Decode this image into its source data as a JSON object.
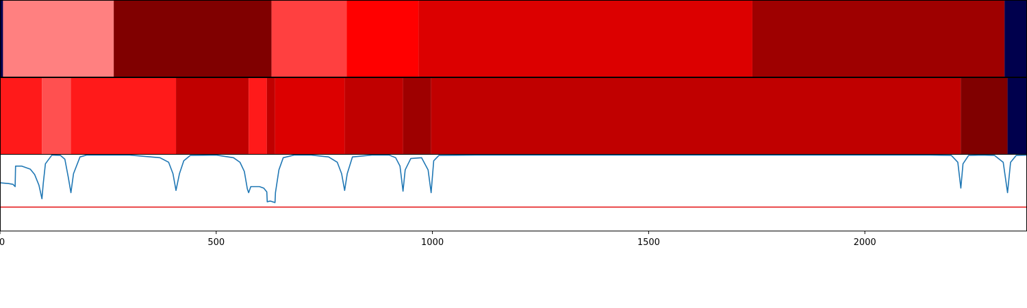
{
  "chart_data": [
    {
      "type": "heatmap",
      "title": "",
      "xlim": [
        0,
        2375
      ],
      "colormap": "seismic",
      "segments": [
        {
          "start": 0,
          "end": 7,
          "color": "#00004d"
        },
        {
          "start": 7,
          "end": 263,
          "color": "#ff8080"
        },
        {
          "start": 263,
          "end": 628,
          "color": "#800000"
        },
        {
          "start": 628,
          "end": 802,
          "color": "#ff4040"
        },
        {
          "start": 802,
          "end": 968,
          "color": "#ff0000"
        },
        {
          "start": 968,
          "end": 1740,
          "color": "#dc0000"
        },
        {
          "start": 1740,
          "end": 2323,
          "color": "#9e0000"
        },
        {
          "start": 2323,
          "end": 2375,
          "color": "#00004d"
        }
      ]
    },
    {
      "type": "heatmap",
      "title": "",
      "xlim": [
        0,
        2375
      ],
      "colormap": "seismic",
      "segments": [
        {
          "start": 0,
          "end": 97,
          "color": "#ff1a1a"
        },
        {
          "start": 97,
          "end": 164,
          "color": "#ff5050"
        },
        {
          "start": 164,
          "end": 407,
          "color": "#ff1a1a"
        },
        {
          "start": 407,
          "end": 575,
          "color": "#c00000"
        },
        {
          "start": 575,
          "end": 617,
          "color": "#ff1a1a"
        },
        {
          "start": 617,
          "end": 636,
          "color": "#c00000"
        },
        {
          "start": 636,
          "end": 797,
          "color": "#dc0000"
        },
        {
          "start": 797,
          "end": 932,
          "color": "#c00000"
        },
        {
          "start": 932,
          "end": 997,
          "color": "#9e0000"
        },
        {
          "start": 997,
          "end": 2222,
          "color": "#c00000"
        },
        {
          "start": 2222,
          "end": 2330,
          "color": "#800000"
        },
        {
          "start": 2330,
          "end": 2375,
          "color": "#00004d"
        }
      ]
    },
    {
      "type": "line",
      "title": "",
      "xlabel": "",
      "ylabel": "",
      "xlim": [
        0,
        2375
      ],
      "ylim": [
        0,
        1
      ],
      "threshold": 0.31,
      "threshold_color": "#e41a1c",
      "line_color": "#1f77b4",
      "x_ticks": [
        0,
        500,
        1000,
        1500,
        2000
      ],
      "x_tick_labels": [
        "0",
        "500",
        "1000",
        "1500",
        "2000"
      ],
      "series": [
        {
          "x": [
            0,
            20,
            30,
            35,
            36,
            50,
            70,
            80,
            90,
            97,
            100,
            105,
            120,
            140,
            150,
            158,
            164,
            170,
            185,
            200,
            250,
            300,
            370,
            390,
            400,
            407,
            415,
            425,
            440,
            500,
            540,
            555,
            565,
            572,
            575,
            580,
            590,
            600,
            610,
            617,
            618,
            625,
            636,
            637,
            645,
            655,
            680,
            700,
            720,
            760,
            780,
            790,
            797,
            803,
            815,
            860,
            900,
            915,
            925,
            932,
            937,
            950,
            975,
            990,
            997,
            1003,
            1015,
            1100,
            1500,
            2000,
            2150,
            2200,
            2215,
            2222,
            2227,
            2240,
            2270,
            2300,
            2320,
            2330,
            2337,
            2350,
            2375
          ],
          "y": [
            0.63,
            0.62,
            0.61,
            0.58,
            0.85,
            0.85,
            0.81,
            0.74,
            0.6,
            0.42,
            0.62,
            0.88,
            0.995,
            0.99,
            0.94,
            0.7,
            0.5,
            0.75,
            0.97,
            0.995,
            0.995,
            0.995,
            0.96,
            0.9,
            0.75,
            0.53,
            0.75,
            0.92,
            0.99,
            0.995,
            0.96,
            0.9,
            0.78,
            0.55,
            0.5,
            0.58,
            0.58,
            0.58,
            0.56,
            0.51,
            0.38,
            0.39,
            0.37,
            0.5,
            0.8,
            0.96,
            0.995,
            0.995,
            0.995,
            0.97,
            0.9,
            0.75,
            0.53,
            0.75,
            0.97,
            0.995,
            0.995,
            0.96,
            0.85,
            0.52,
            0.8,
            0.95,
            0.96,
            0.8,
            0.5,
            0.92,
            0.99,
            0.995,
            0.995,
            0.995,
            0.995,
            0.99,
            0.9,
            0.56,
            0.88,
            0.99,
            0.995,
            0.99,
            0.9,
            0.5,
            0.9,
            0.99,
            0.995
          ]
        }
      ]
    }
  ]
}
